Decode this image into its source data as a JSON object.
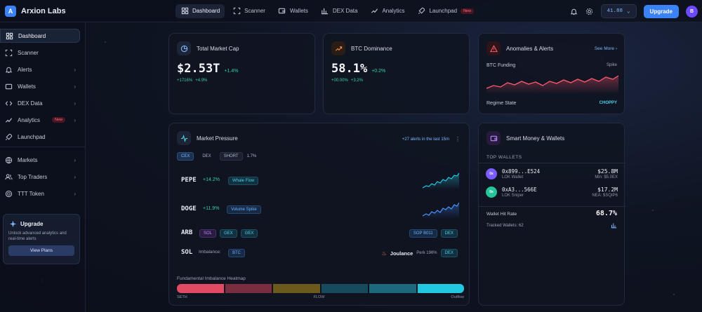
{
  "app": {
    "logo_letter": "A",
    "name": "Arxion Labs"
  },
  "topnav": [
    {
      "label": "Dashboard",
      "icon": "grid-icon"
    },
    {
      "label": "Scanner",
      "icon": "scan-icon"
    },
    {
      "label": "Wallets",
      "icon": "wallet-icon"
    },
    {
      "label": "DEX Data",
      "icon": "bar-chart-icon"
    },
    {
      "label": "Analytics",
      "icon": "trend-icon"
    },
    {
      "label": "Launchpad",
      "icon": "rocket-icon",
      "badge": "New"
    }
  ],
  "header": {
    "balance": "41.88",
    "upgrade_label": "Upgrade",
    "avatar_letter": "B"
  },
  "sidebar": {
    "items": [
      {
        "label": "Dashboard"
      },
      {
        "label": "Scanner"
      },
      {
        "label": "Alerts"
      },
      {
        "label": "Wallets"
      },
      {
        "label": "DEX Data"
      },
      {
        "label": "Analytics",
        "badge": "New"
      },
      {
        "label": "Launchpad"
      }
    ],
    "items2": [
      {
        "label": "Markets"
      },
      {
        "label": "Top Traders"
      },
      {
        "label": "TTT Token"
      }
    ],
    "upgrade": {
      "title": "Upgrade",
      "text": "Unlock advanced analytics and real-time alerts",
      "button": "View Plans"
    }
  },
  "market_cap": {
    "title": "Total Market Cap",
    "value": "$2.53T",
    "delta": "+1.4%",
    "sub1": "+1716%",
    "sub2": "+4.9%"
  },
  "btc_dominance": {
    "title": "BTC Dominance",
    "value": "58.1%",
    "delta": "+0.2%",
    "sub1": "+00.00%",
    "sub2": "+3.2%"
  },
  "anomalies": {
    "title": "Anomalies & Alerts",
    "see_more": "See More",
    "funding_label": "BTC Funding",
    "funding_tag": "Spike",
    "regime_label": "Regime State",
    "regime_value": "CHOPPY"
  },
  "market_pressure": {
    "title": "Market Pressure",
    "alerts_text": "+27 alerts in the last 15m",
    "filters": {
      "cex": "CEX",
      "dex": "DEX",
      "short": "SHORT",
      "pct": "1.7%"
    },
    "rows": [
      {
        "ticker": "PEPE",
        "change": "+14.2%",
        "tag": "Whale Flow"
      },
      {
        "ticker": "DOGE",
        "change": "+11.9%",
        "tag": "Volume Spike"
      },
      {
        "ticker": "ARB",
        "tag1": "SOL",
        "tag2": "GEX",
        "tag3": "GEX",
        "right1": "SOP B011",
        "right2": "DEX"
      },
      {
        "ticker": "SOL",
        "imbalance_label": "Imbalance:",
        "imbalance_tag": "BTC",
        "right_name": "Joulance",
        "right_perk": "Perk 196%",
        "right_tag": "DEX"
      }
    ],
    "heatmap": {
      "title": "Fundamental Imbalance Heatmap",
      "label_left": "SETH",
      "label_mid": "FLOW",
      "label_right": "Outflow",
      "colors": [
        "#e04a63",
        "#7a2d3f",
        "#6a5a1c",
        "#174a5c",
        "#1a6a7c",
        "#22c7e0"
      ]
    }
  },
  "smart_money": {
    "title": "Smart Money & Wallets",
    "section": "TOP WALLETS",
    "wallets": [
      {
        "avatar": "0x",
        "color": "#7a5cff",
        "id": "0x899...E524",
        "tag": "LOK Wallet",
        "amount": "$25.8M",
        "min": "Min: $5.0EX"
      },
      {
        "avatar": "0x",
        "color": "#26c49a",
        "id": "0xA3...566E",
        "tag": "LOK Sniper",
        "amount": "$17.2M",
        "min": "NEA: $SQIP6"
      }
    ],
    "hit_rate_label": "Wallet Hit Rate",
    "hit_rate_value": "68.7%",
    "tracked_label": "Tracked Wallets: 62"
  }
}
